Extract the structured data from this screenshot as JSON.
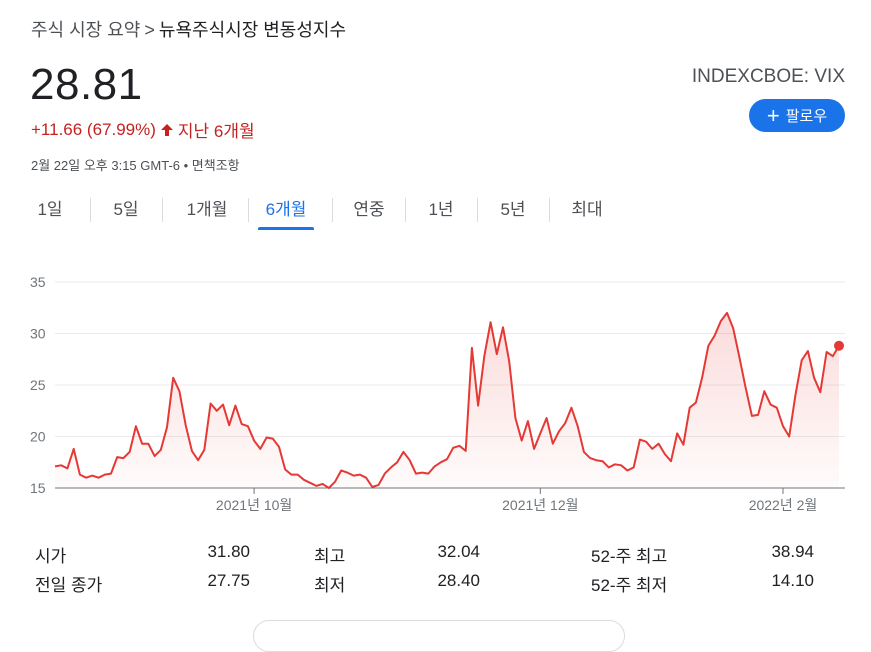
{
  "breadcrumb": {
    "parent": "주식 시장 요약",
    "separator": ">",
    "current": "뉴욕주식시장 변동성지수"
  },
  "quote": {
    "price": "28.81",
    "ticker": "INDEXCBOE: VIX",
    "change": "+11.66 (67.99%)",
    "period": "지난 6개월",
    "timestamp": "2월 22일 오후 3:15 GMT-6 • 면책조항"
  },
  "follow": {
    "label": "팔로우"
  },
  "tabs": [
    {
      "label": "1일"
    },
    {
      "label": "5일"
    },
    {
      "label": "1개월"
    },
    {
      "label": "6개월",
      "active": true
    },
    {
      "label": "연중"
    },
    {
      "label": "1년"
    },
    {
      "label": "5년"
    },
    {
      "label": "최대"
    }
  ],
  "colors": {
    "line": "#e53935",
    "accent": "#1a73e8",
    "negative": "#c5221f"
  },
  "chart_data": {
    "type": "area",
    "ylim": [
      15,
      35
    ],
    "y_ticks": [
      "35",
      "30",
      "25",
      "20",
      "15"
    ],
    "x_ticks": [
      "2021년 10월",
      "2021년 12월",
      "2022년 2월"
    ],
    "grid": true,
    "series": [
      {
        "values": [
          17.1,
          17.2,
          16.9,
          18.8,
          16.3,
          16.0,
          16.2,
          16.0,
          16.3,
          16.4,
          18.0,
          17.9,
          18.5,
          21.0,
          19.3,
          19.3,
          18.1,
          18.7,
          20.9,
          25.7,
          24.4,
          21.1,
          18.6,
          17.7,
          18.7,
          23.2,
          22.5,
          23.1,
          21.1,
          23.0,
          21.2,
          21.0,
          19.6,
          18.8,
          19.9,
          19.8,
          19.0,
          16.8,
          16.3,
          16.3,
          15.8,
          15.5,
          15.2,
          15.4,
          15.0,
          15.6,
          16.7,
          16.5,
          16.2,
          16.3,
          16.0,
          15.1,
          15.3,
          16.4,
          17.0,
          17.5,
          18.5,
          17.7,
          16.4,
          16.5,
          16.4,
          17.1,
          17.5,
          17.8,
          18.9,
          19.1,
          18.6,
          28.6,
          23.0,
          27.8,
          31.1,
          28.0,
          30.6,
          27.3,
          21.8,
          19.6,
          21.5,
          18.8,
          20.3,
          21.8,
          19.3,
          20.5,
          21.3,
          22.8,
          21.0,
          18.5,
          17.9,
          17.7,
          17.6,
          17.0,
          17.3,
          17.2,
          16.7,
          17.0,
          19.7,
          19.5,
          18.8,
          19.3,
          18.3,
          17.6,
          20.3,
          19.2,
          22.8,
          23.3,
          25.7,
          28.8,
          29.8,
          31.2,
          32.0,
          30.5,
          27.7,
          24.7,
          22.0,
          22.1,
          24.4,
          23.1,
          22.8,
          21.0,
          20.0,
          24.0,
          27.4,
          28.3,
          25.7,
          24.3,
          28.2,
          27.8,
          28.81
        ]
      }
    ]
  },
  "stats": [
    {
      "label": "시가",
      "value": "31.80"
    },
    {
      "label": "최고",
      "value": "32.04"
    },
    {
      "label": "52-주 최고",
      "value": "38.94"
    },
    {
      "label": "전일 종가",
      "value": "27.75"
    },
    {
      "label": "최저",
      "value": "28.40"
    },
    {
      "label": "52-주 최저",
      "value": "14.10"
    }
  ]
}
